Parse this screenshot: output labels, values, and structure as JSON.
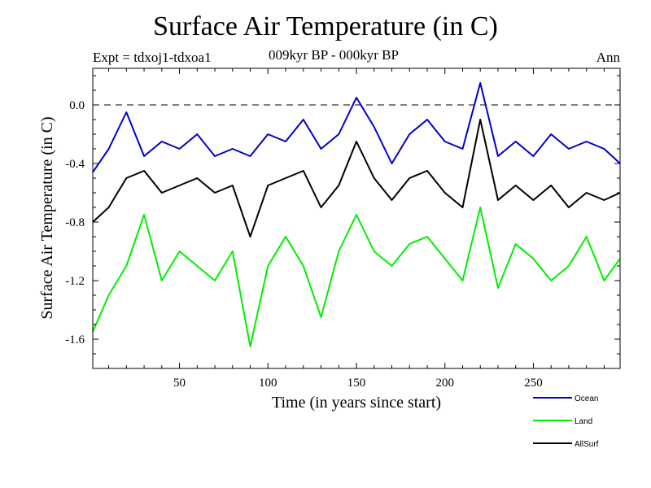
{
  "chart_data": {
    "type": "line",
    "title": "Surface Air Temperature (in C)",
    "subtitle": "009kyr BP - 000kyr BP",
    "experiment": "Expt = tdxoj1-tdxoa1",
    "season": "Ann",
    "xlabel": "Time (in years since start)",
    "ylabel": "Surface Air Temperature (in C)",
    "xlim": [
      1,
      299
    ],
    "ylim": [
      -1.8,
      0.25
    ],
    "xticks": [
      50,
      100,
      150,
      200,
      250
    ],
    "xtick_labels": [
      "50",
      "100",
      "150",
      "200",
      "250"
    ],
    "yticks": [
      0.0,
      -0.4,
      -0.8,
      -1.2,
      -1.6
    ],
    "ytick_labels": [
      "0.0",
      "-0.4",
      "-0.8",
      "-1.2",
      "-1.6"
    ],
    "reference_line": 0.0,
    "series": [
      {
        "name": "Ocean",
        "color": "#0000cc",
        "x": [
          1,
          10,
          20,
          30,
          40,
          50,
          60,
          70,
          80,
          90,
          100,
          110,
          120,
          130,
          140,
          150,
          160,
          170,
          180,
          190,
          200,
          210,
          220,
          230,
          240,
          250,
          260,
          270,
          280,
          290,
          299
        ],
        "values": [
          -0.46,
          -0.3,
          -0.05,
          -0.35,
          -0.25,
          -0.3,
          -0.2,
          -0.35,
          -0.3,
          -0.35,
          -0.2,
          -0.25,
          -0.1,
          -0.3,
          -0.2,
          0.05,
          -0.15,
          -0.4,
          -0.2,
          -0.1,
          -0.25,
          -0.3,
          0.15,
          -0.35,
          -0.25,
          -0.35,
          -0.2,
          -0.3,
          -0.25,
          -0.3,
          -0.4
        ]
      },
      {
        "name": "Land",
        "color": "#00ee00",
        "x": [
          1,
          10,
          20,
          30,
          40,
          50,
          60,
          70,
          80,
          90,
          100,
          110,
          120,
          130,
          140,
          150,
          160,
          170,
          180,
          190,
          200,
          210,
          220,
          230,
          240,
          250,
          260,
          270,
          280,
          290,
          299
        ],
        "values": [
          -1.55,
          -1.3,
          -1.1,
          -0.75,
          -1.2,
          -1.0,
          -1.1,
          -1.2,
          -1.0,
          -1.65,
          -1.1,
          -0.9,
          -1.1,
          -1.45,
          -1.0,
          -0.75,
          -1.0,
          -1.1,
          -0.95,
          -0.9,
          -1.05,
          -1.2,
          -0.7,
          -1.25,
          -0.95,
          -1.05,
          -1.2,
          -1.1,
          -0.9,
          -1.2,
          -1.05
        ]
      },
      {
        "name": "AllSurf",
        "color": "#000000",
        "x": [
          1,
          10,
          20,
          30,
          40,
          50,
          60,
          70,
          80,
          90,
          100,
          110,
          120,
          130,
          140,
          150,
          160,
          170,
          180,
          190,
          200,
          210,
          220,
          230,
          240,
          250,
          260,
          270,
          280,
          290,
          299
        ],
        "values": [
          -0.8,
          -0.7,
          -0.5,
          -0.45,
          -0.6,
          -0.55,
          -0.5,
          -0.6,
          -0.55,
          -0.9,
          -0.55,
          -0.5,
          -0.45,
          -0.7,
          -0.55,
          -0.25,
          -0.5,
          -0.65,
          -0.5,
          -0.45,
          -0.6,
          -0.7,
          -0.1,
          -0.65,
          -0.55,
          -0.65,
          -0.55,
          -0.7,
          -0.6,
          -0.65,
          -0.6
        ]
      }
    ],
    "legend": [
      "Ocean",
      "Land",
      "AllSurf"
    ],
    "legend_position": "bottom-right"
  }
}
